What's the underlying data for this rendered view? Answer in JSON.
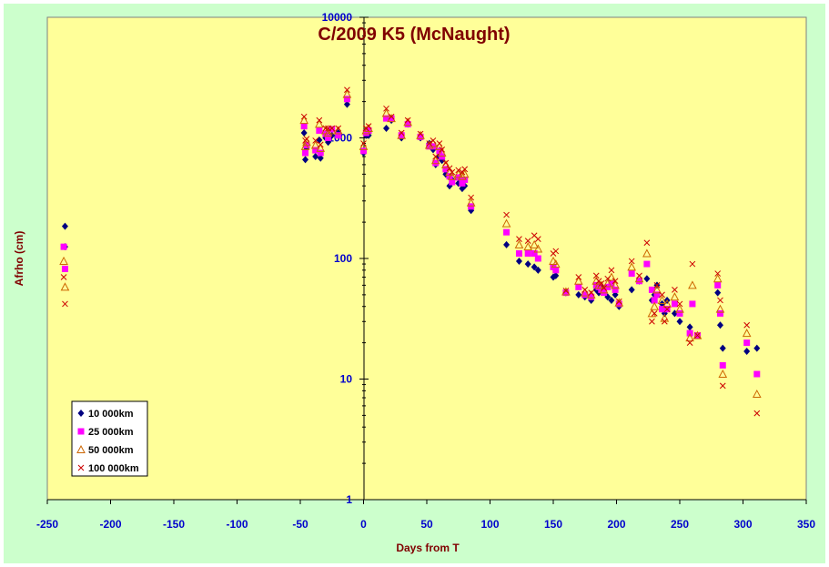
{
  "chart_data": {
    "type": "scatter",
    "title": "C/2009 K5 (McNaught)",
    "xlabel": "Days from T",
    "ylabel": "Afrho (cm)",
    "xlim": [
      -250,
      350
    ],
    "ylim": [
      1,
      10000
    ],
    "yscale": "log",
    "grid": false,
    "legend_position": "bottom-left",
    "x_ticks": [
      "-250",
      "-200",
      "-150",
      "-100",
      "-50",
      "0",
      "50",
      "100",
      "150",
      "200",
      "250",
      "300",
      "350"
    ],
    "y_ticks": [
      "1",
      "10",
      "100",
      "1000",
      "10000"
    ],
    "colors": {
      "plot_bg": "#ffff99",
      "frame_bg": "#ccffcc",
      "axis": "#000000",
      "tick_labels": "#0000cc",
      "titles": "#800000"
    },
    "series": [
      {
        "name": "10 000km",
        "marker": "diamond",
        "color": "#000080",
        "points": [
          [
            -236,
            185
          ],
          [
            -236,
            125
          ],
          [
            -47,
            1100
          ],
          [
            -46,
            660
          ],
          [
            -45,
            820
          ],
          [
            -38,
            700
          ],
          [
            -35,
            960
          ],
          [
            -34,
            680
          ],
          [
            -30,
            1000
          ],
          [
            -28,
            920
          ],
          [
            -25,
            1050
          ],
          [
            -20,
            1100
          ],
          [
            -13,
            1900
          ],
          [
            0,
            750
          ],
          [
            2,
            1050
          ],
          [
            4,
            1050
          ],
          [
            18,
            1200
          ],
          [
            22,
            1400
          ],
          [
            30,
            1000
          ],
          [
            35,
            1300
          ],
          [
            45,
            1000
          ],
          [
            52,
            900
          ],
          [
            55,
            800
          ],
          [
            57,
            600
          ],
          [
            60,
            700
          ],
          [
            62,
            650
          ],
          [
            65,
            500
          ],
          [
            68,
            400
          ],
          [
            70,
            450
          ],
          [
            75,
            420
          ],
          [
            78,
            380
          ],
          [
            80,
            400
          ],
          [
            85,
            250
          ],
          [
            113,
            130
          ],
          [
            123,
            95
          ],
          [
            130,
            90
          ],
          [
            135,
            85
          ],
          [
            138,
            80
          ],
          [
            150,
            70
          ],
          [
            152,
            72
          ],
          [
            160,
            52
          ],
          [
            170,
            50
          ],
          [
            175,
            48
          ],
          [
            180,
            45
          ],
          [
            184,
            55
          ],
          [
            186,
            52
          ],
          [
            188,
            58
          ],
          [
            190,
            55
          ],
          [
            193,
            48
          ],
          [
            196,
            45
          ],
          [
            199,
            50
          ],
          [
            202,
            40
          ],
          [
            212,
            55
          ],
          [
            218,
            65
          ],
          [
            224,
            68
          ],
          [
            228,
            45
          ],
          [
            230,
            50
          ],
          [
            232,
            60
          ],
          [
            236,
            42
          ],
          [
            238,
            35
          ],
          [
            240,
            45
          ],
          [
            246,
            35
          ],
          [
            250,
            30
          ],
          [
            258,
            27
          ],
          [
            264,
            23
          ],
          [
            280,
            52
          ],
          [
            282,
            28
          ],
          [
            284,
            18
          ],
          [
            303,
            17
          ],
          [
            311,
            18
          ]
        ]
      },
      {
        "name": "25 000km",
        "marker": "square",
        "color": "#ff00ff",
        "points": [
          [
            -237,
            125
          ],
          [
            -236,
            82
          ],
          [
            -47,
            1250
          ],
          [
            -46,
            750
          ],
          [
            -45,
            870
          ],
          [
            -38,
            790
          ],
          [
            -35,
            1150
          ],
          [
            -34,
            750
          ],
          [
            -30,
            1080
          ],
          [
            -28,
            1000
          ],
          [
            -25,
            1180
          ],
          [
            -20,
            1050
          ],
          [
            -13,
            2100
          ],
          [
            0,
            780
          ],
          [
            2,
            1100
          ],
          [
            4,
            1150
          ],
          [
            18,
            1450
          ],
          [
            22,
            1450
          ],
          [
            30,
            1050
          ],
          [
            35,
            1300
          ],
          [
            45,
            1020
          ],
          [
            52,
            850
          ],
          [
            55,
            850
          ],
          [
            57,
            620
          ],
          [
            60,
            780
          ],
          [
            62,
            700
          ],
          [
            65,
            550
          ],
          [
            68,
            480
          ],
          [
            70,
            430
          ],
          [
            75,
            470
          ],
          [
            78,
            420
          ],
          [
            80,
            450
          ],
          [
            85,
            270
          ],
          [
            113,
            165
          ],
          [
            123,
            110
          ],
          [
            130,
            110
          ],
          [
            135,
            110
          ],
          [
            138,
            100
          ],
          [
            150,
            85
          ],
          [
            152,
            80
          ],
          [
            160,
            52
          ],
          [
            170,
            58
          ],
          [
            175,
            50
          ],
          [
            180,
            48
          ],
          [
            184,
            60
          ],
          [
            186,
            58
          ],
          [
            188,
            55
          ],
          [
            190,
            52
          ],
          [
            193,
            58
          ],
          [
            196,
            62
          ],
          [
            199,
            55
          ],
          [
            202,
            42
          ],
          [
            212,
            75
          ],
          [
            218,
            65
          ],
          [
            224,
            90
          ],
          [
            228,
            55
          ],
          [
            230,
            45
          ],
          [
            232,
            50
          ],
          [
            236,
            38
          ],
          [
            238,
            38
          ],
          [
            240,
            38
          ],
          [
            246,
            42
          ],
          [
            250,
            35
          ],
          [
            258,
            24
          ],
          [
            260,
            42
          ],
          [
            264,
            23
          ],
          [
            280,
            60
          ],
          [
            282,
            35
          ],
          [
            284,
            13
          ],
          [
            303,
            20
          ],
          [
            311,
            11
          ]
        ]
      },
      {
        "name": "50 000km",
        "marker": "triangle",
        "color": "#cc6600",
        "points": [
          [
            -237,
            95
          ],
          [
            -236,
            58
          ],
          [
            -47,
            1400
          ],
          [
            -46,
            850
          ],
          [
            -45,
            920
          ],
          [
            -38,
            870
          ],
          [
            -35,
            1300
          ],
          [
            -34,
            820
          ],
          [
            -30,
            1150
          ],
          [
            -28,
            1100
          ],
          [
            -25,
            1150
          ],
          [
            -20,
            1150
          ],
          [
            -13,
            2300
          ],
          [
            0,
            850
          ],
          [
            2,
            1150
          ],
          [
            4,
            1200
          ],
          [
            18,
            1600
          ],
          [
            22,
            1450
          ],
          [
            30,
            1050
          ],
          [
            35,
            1350
          ],
          [
            45,
            1050
          ],
          [
            52,
            870
          ],
          [
            55,
            900
          ],
          [
            57,
            650
          ],
          [
            60,
            850
          ],
          [
            62,
            750
          ],
          [
            65,
            600
          ],
          [
            68,
            520
          ],
          [
            70,
            480
          ],
          [
            75,
            500
          ],
          [
            78,
            480
          ],
          [
            80,
            500
          ],
          [
            85,
            290
          ],
          [
            113,
            195
          ],
          [
            123,
            130
          ],
          [
            130,
            125
          ],
          [
            135,
            130
          ],
          [
            138,
            120
          ],
          [
            150,
            95
          ],
          [
            152,
            90
          ],
          [
            160,
            53
          ],
          [
            170,
            65
          ],
          [
            175,
            52
          ],
          [
            180,
            50
          ],
          [
            184,
            65
          ],
          [
            186,
            60
          ],
          [
            188,
            60
          ],
          [
            190,
            55
          ],
          [
            193,
            62
          ],
          [
            196,
            70
          ],
          [
            199,
            60
          ],
          [
            202,
            43
          ],
          [
            212,
            85
          ],
          [
            218,
            68
          ],
          [
            224,
            110
          ],
          [
            228,
            35
          ],
          [
            230,
            40
          ],
          [
            232,
            55
          ],
          [
            236,
            45
          ],
          [
            238,
            32
          ],
          [
            240,
            42
          ],
          [
            246,
            48
          ],
          [
            250,
            38
          ],
          [
            258,
            22
          ],
          [
            260,
            60
          ],
          [
            264,
            23
          ],
          [
            280,
            68
          ],
          [
            282,
            38
          ],
          [
            284,
            11
          ],
          [
            303,
            24
          ],
          [
            311,
            7.5
          ]
        ]
      },
      {
        "name": "100 000km",
        "marker": "cross",
        "color": "#cc0000",
        "points": [
          [
            -237,
            70
          ],
          [
            -236,
            42
          ],
          [
            -47,
            1500
          ],
          [
            -46,
            950
          ],
          [
            -45,
            980
          ],
          [
            -38,
            950
          ],
          [
            -35,
            1400
          ],
          [
            -34,
            880
          ],
          [
            -30,
            1200
          ],
          [
            -28,
            1200
          ],
          [
            -25,
            1200
          ],
          [
            -20,
            1200
          ],
          [
            -13,
            2500
          ],
          [
            0,
            900
          ],
          [
            2,
            1200
          ],
          [
            4,
            1250
          ],
          [
            18,
            1750
          ],
          [
            22,
            1500
          ],
          [
            30,
            1100
          ],
          [
            35,
            1400
          ],
          [
            45,
            1080
          ],
          [
            52,
            900
          ],
          [
            55,
            950
          ],
          [
            57,
            700
          ],
          [
            60,
            900
          ],
          [
            62,
            800
          ],
          [
            65,
            620
          ],
          [
            68,
            560
          ],
          [
            70,
            520
          ],
          [
            75,
            540
          ],
          [
            78,
            520
          ],
          [
            80,
            550
          ],
          [
            85,
            320
          ],
          [
            113,
            230
          ],
          [
            123,
            145
          ],
          [
            130,
            140
          ],
          [
            135,
            155
          ],
          [
            138,
            145
          ],
          [
            150,
            110
          ],
          [
            152,
            115
          ],
          [
            160,
            54
          ],
          [
            170,
            70
          ],
          [
            175,
            55
          ],
          [
            180,
            52
          ],
          [
            184,
            72
          ],
          [
            186,
            65
          ],
          [
            188,
            62
          ],
          [
            190,
            57
          ],
          [
            193,
            68
          ],
          [
            196,
            80
          ],
          [
            199,
            65
          ],
          [
            202,
            44
          ],
          [
            212,
            95
          ],
          [
            218,
            72
          ],
          [
            224,
            135
          ],
          [
            228,
            30
          ],
          [
            230,
            35
          ],
          [
            232,
            60
          ],
          [
            236,
            50
          ],
          [
            238,
            30
          ],
          [
            240,
            38
          ],
          [
            246,
            55
          ],
          [
            250,
            42
          ],
          [
            258,
            20
          ],
          [
            260,
            90
          ],
          [
            264,
            23
          ],
          [
            280,
            75
          ],
          [
            282,
            45
          ],
          [
            284,
            8.8
          ],
          [
            303,
            28
          ],
          [
            311,
            5.2
          ]
        ]
      }
    ]
  }
}
